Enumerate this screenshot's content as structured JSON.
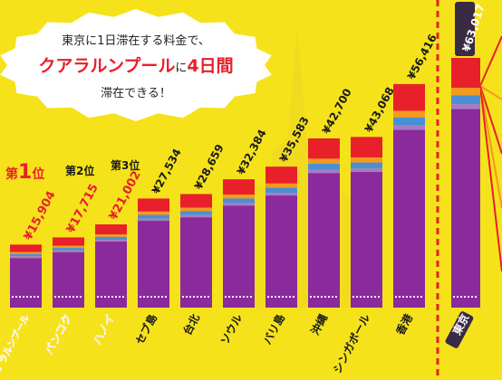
{
  "bubble": {
    "line1": "東京に1日滞在する料金で、",
    "city": "クアラルンプール",
    "mid": "に",
    "days": "4日間",
    "line3": "滞在できる！"
  },
  "ranks": {
    "first_prefix": "第",
    "first_num": "1",
    "first_suffix": "位",
    "second": "第2位",
    "third": "第3位"
  },
  "colors": {
    "background": "#f5e21b",
    "segment_top": "#e8202a",
    "segment_orange": "#f39a1f",
    "segment_blue": "#4a8fd6",
    "segment_lavender": "#a57cc6",
    "segment_main": "#8a2a9c",
    "label_red": "#e8202a",
    "text_dark": "#1a1a1a"
  },
  "chart_data": {
    "type": "bar",
    "stacked": true,
    "categories": [
      "クアラルンプール",
      "バンコク",
      "ハノイ",
      "セブ島",
      "台北",
      "ソウル",
      "バリ島",
      "沖縄",
      "シンガポール",
      "香港",
      "東京"
    ],
    "value_labels": [
      "¥15,904",
      "¥17,715",
      "¥21,002",
      "¥27,534",
      "¥28,659",
      "¥32,384",
      "¥35,583",
      "¥42,700",
      "¥43,068",
      "¥56,416",
      "¥63,017"
    ],
    "values": [
      15904,
      17715,
      21002,
      27534,
      28659,
      32384,
      35583,
      42700,
      43068,
      56416,
      63017
    ],
    "highlighted": [
      "クアラルンプール",
      "バンコク",
      "ハノイ",
      "東京"
    ],
    "ylim": [
      0,
      63017
    ],
    "grid": false,
    "legend": "none"
  }
}
